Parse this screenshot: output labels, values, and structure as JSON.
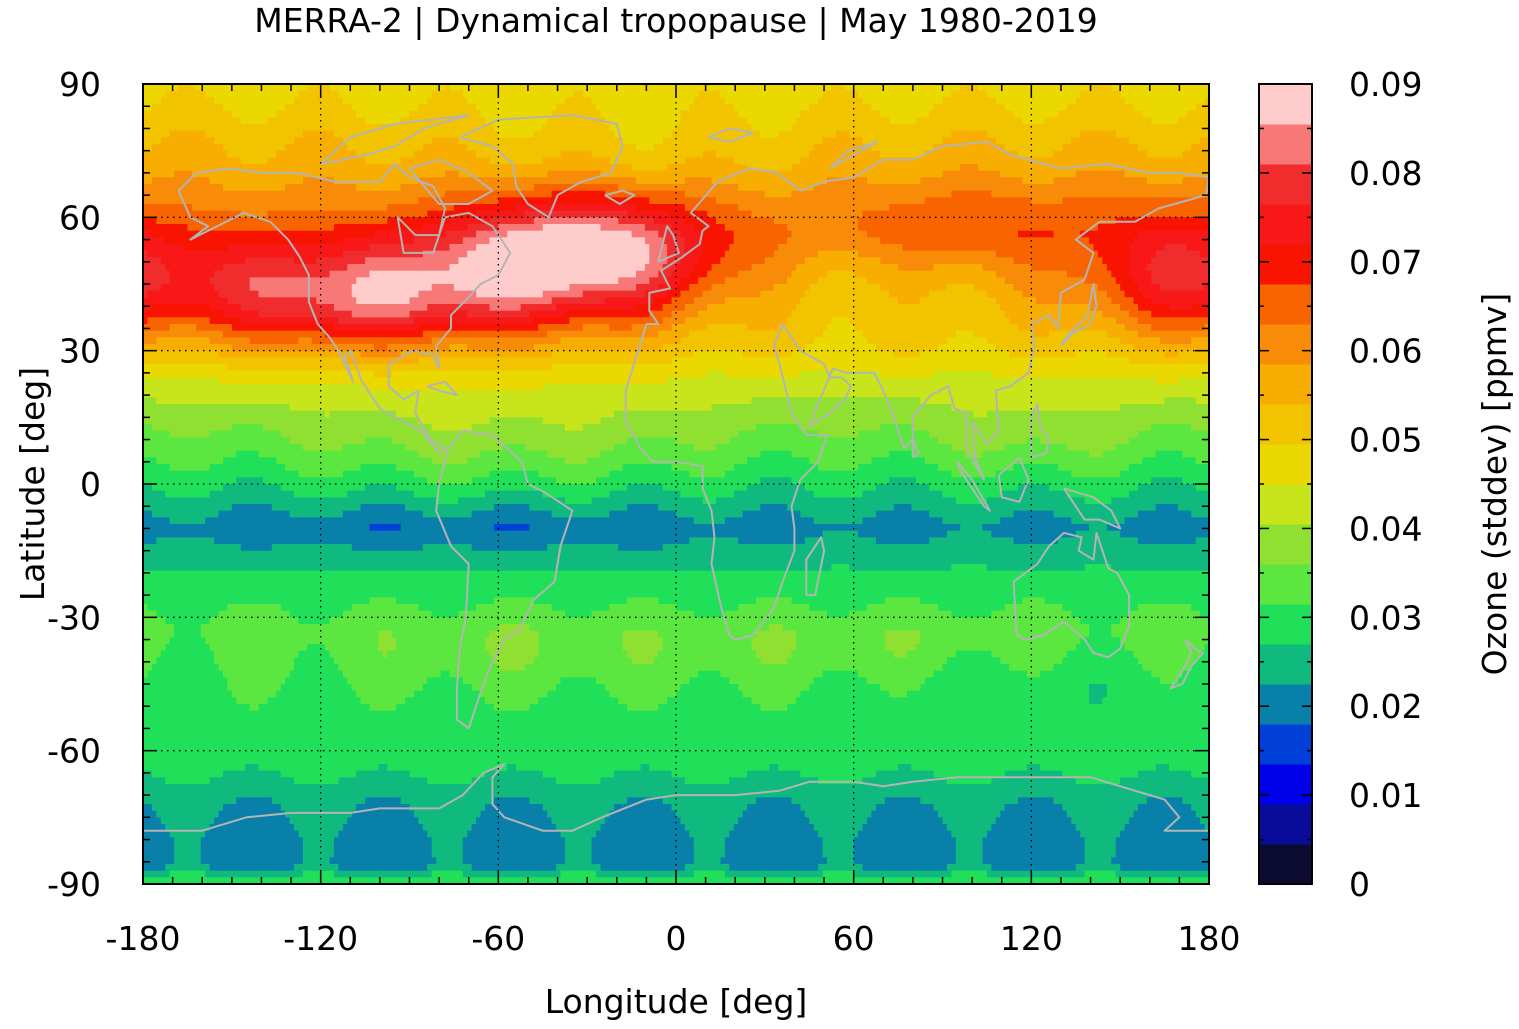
{
  "chart_data": {
    "type": "heatmap",
    "title": "MERRA-2 | Dynamical tropopause | May 1980-2019",
    "xlabel": "Longitude [deg]",
    "ylabel": "Latitude [deg]",
    "colorbar_label": "Ozone (stddev) [ppmv]",
    "xlim": [
      -180,
      180
    ],
    "ylim": [
      -90,
      90
    ],
    "x_ticks": [
      -180,
      -120,
      -60,
      0,
      60,
      120,
      180
    ],
    "y_ticks": [
      -90,
      -60,
      -30,
      0,
      30,
      60,
      90
    ],
    "x_tick_labels": [
      "-180",
      "-120",
      "-60",
      "0",
      "60",
      "120",
      "180"
    ],
    "y_tick_labels": [
      "-90",
      "-60",
      "-30",
      "0",
      "30",
      "60",
      "90"
    ],
    "grid": true,
    "colorbar": {
      "range": [
        0,
        0.09
      ],
      "step": 0.0045,
      "tick_values": [
        0,
        0.01,
        0.02,
        0.03,
        0.04,
        0.05,
        0.06,
        0.07,
        0.08,
        0.09
      ],
      "tick_labels": [
        "0",
        "0.01",
        "0.02",
        "0.03",
        "0.04",
        "0.05",
        "0.06",
        "0.07",
        "0.08",
        "0.09"
      ],
      "colors": [
        "#0c0c30",
        "#080c98",
        "#0000e8",
        "#0040d8",
        "#0880aa",
        "#10b97e",
        "#20e05a",
        "#5ce640",
        "#8fe030",
        "#c8e41a",
        "#ead800",
        "#f2c400",
        "#f8ae00",
        "#f88c08",
        "#f86400",
        "#f81400",
        "#f81818",
        "#f02c2c",
        "#f87878",
        "#ffcccc"
      ]
    },
    "coastline_color": "#b4b4b4",
    "field_description": "Standard deviation of ozone at the dynamical tropopause; maximum (~0.08-0.09 ppmv) over the North Atlantic near 50N 25W, high values (0.065-0.075) along 30-60N over the North Pacific and North America, minimum band (~0.02) near 10S and over Antarctica",
    "cells": [
      {
        "lat": 90,
        "lon": -180,
        "value": 0.052
      }
    ]
  }
}
